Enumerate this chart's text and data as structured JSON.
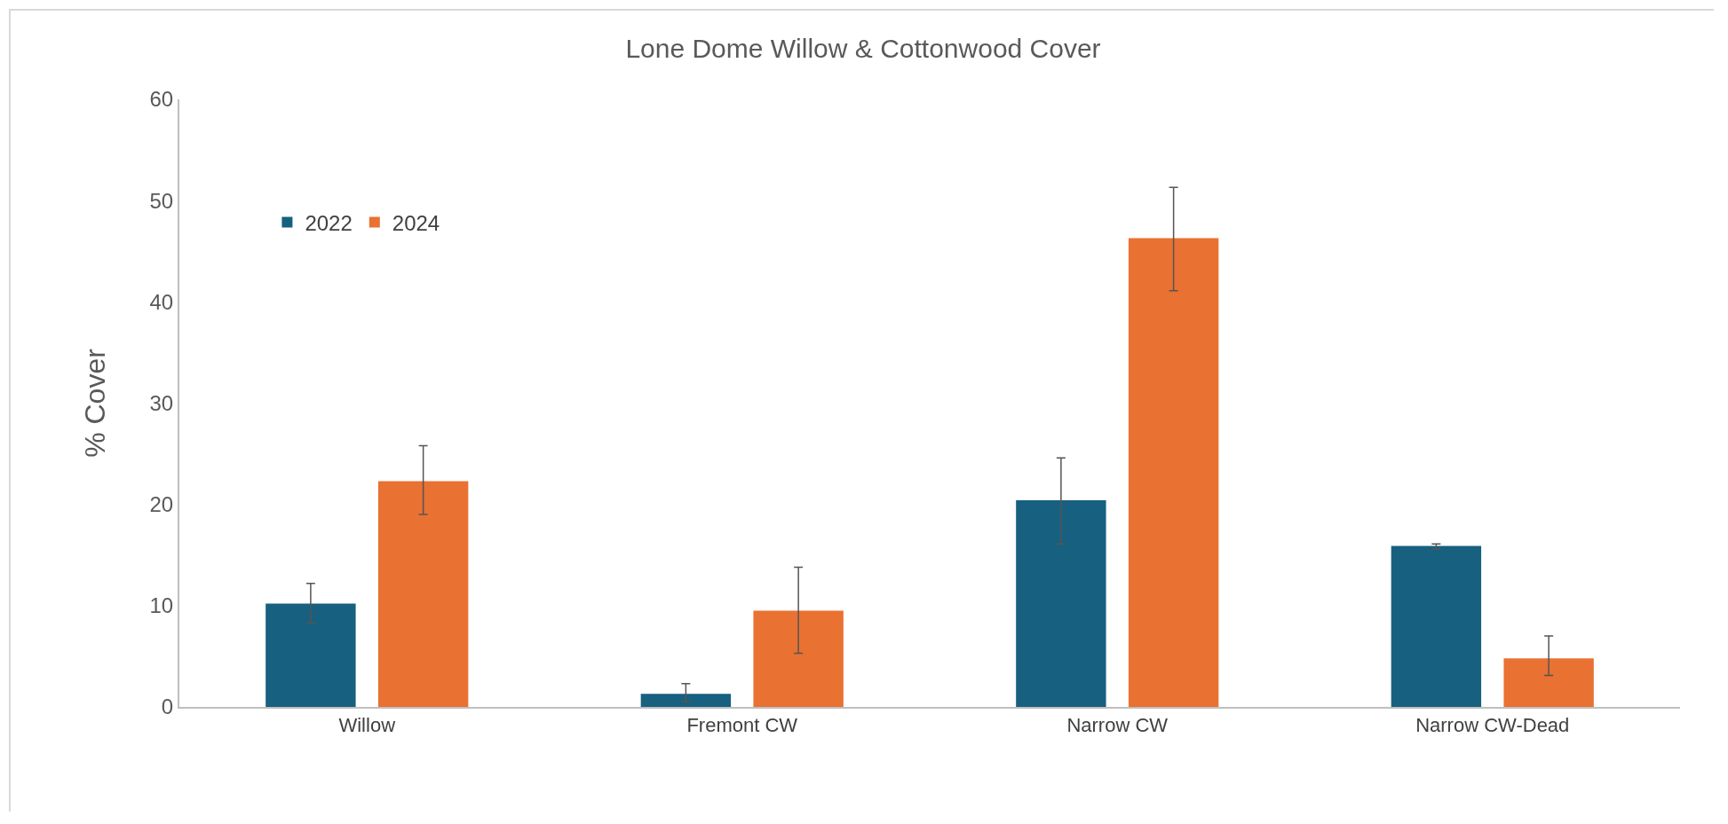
{
  "chart_data": {
    "type": "bar",
    "title": "Lone Dome Willow & Cottonwood Cover",
    "ylabel": "% Cover",
    "categories": [
      "Willow",
      "Fremont CW",
      "Narrow CW",
      "Narrow CW-Dead"
    ],
    "series": [
      {
        "name": "2022",
        "color": "#17607f",
        "values": [
          10.2,
          1.3,
          20.4,
          15.9
        ],
        "errors": [
          [
            8.3,
            12.2
          ],
          [
            0.5,
            2.3
          ],
          [
            16.1,
            24.6
          ],
          [
            15.6,
            16.1
          ]
        ]
      },
      {
        "name": "2024",
        "color": "#e97132",
        "values": [
          22.3,
          9.5,
          46.3,
          4.8
        ],
        "errors": [
          [
            19,
            25.8
          ],
          [
            5.3,
            13.8
          ],
          [
            41.1,
            51.3
          ],
          [
            3.1,
            7
          ]
        ]
      }
    ],
    "ylim": [
      0,
      60
    ],
    "yticks": [
      0,
      10,
      20,
      30,
      40,
      50,
      60
    ],
    "grid": false,
    "legend": "top left"
  }
}
